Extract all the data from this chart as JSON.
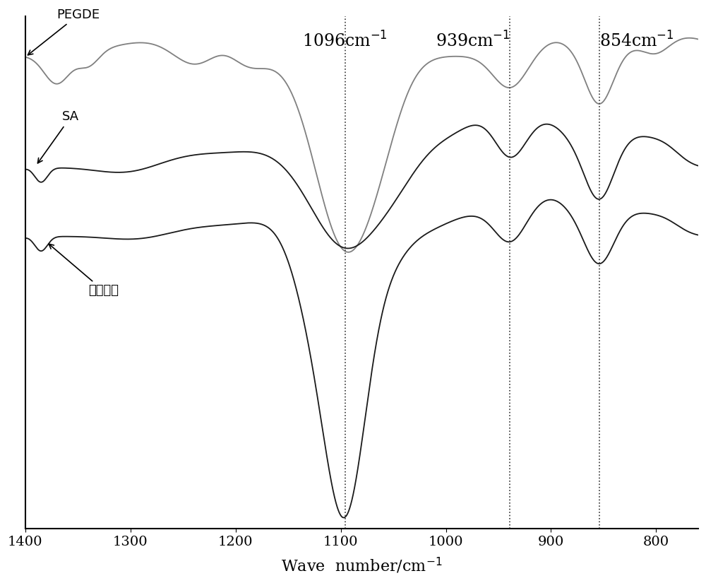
{
  "xlim": [
    1400,
    760
  ],
  "xticks": [
    1400,
    1300,
    1200,
    1100,
    1000,
    900,
    800
  ],
  "xlabel": "Wave  number/cm⁻¹",
  "vlines": [
    1096,
    939,
    854
  ],
  "vline_color": "#444444",
  "pegde_color": "#808080",
  "sa_color": "#1a1a1a",
  "fiber_color": "#1a1a1a",
  "background": "#ffffff",
  "fig_width": 10.0,
  "fig_height": 8.25,
  "annotation_fontsize": 17,
  "label_fontsize": 13,
  "tick_fontsize": 14,
  "xlabel_fontsize": 16
}
